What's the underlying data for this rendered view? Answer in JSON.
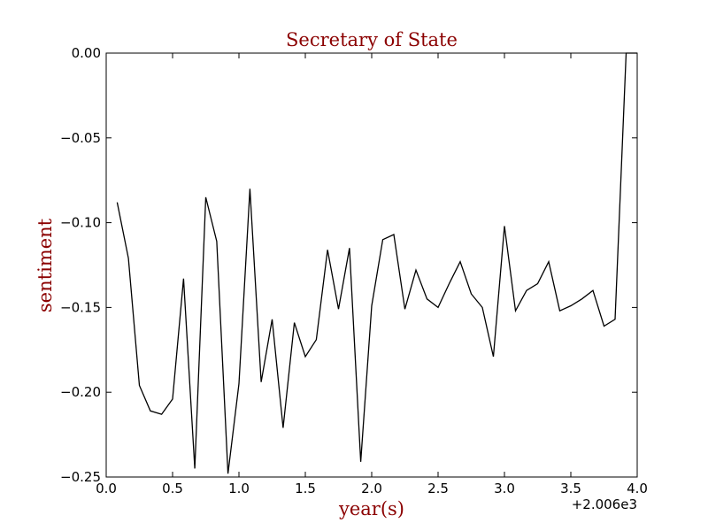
{
  "chart_data": {
    "type": "line",
    "title": "Secretary of State",
    "xlabel": "year(s)",
    "ylabel": "sentiment",
    "x_offset_label": "+2.006e3",
    "xlim": [
      0.0,
      4.0
    ],
    "ylim": [
      -0.25,
      0.0
    ],
    "x_ticks": [
      0.0,
      0.5,
      1.0,
      1.5,
      2.0,
      2.5,
      3.0,
      3.5,
      4.0
    ],
    "x_tick_labels": [
      "0.0",
      "0.5",
      "1.0",
      "1.5",
      "2.0",
      "2.5",
      "3.0",
      "3.5",
      "4.0"
    ],
    "y_ticks": [
      0.0,
      -0.05,
      -0.1,
      -0.15,
      -0.2,
      -0.25
    ],
    "y_tick_labels": [
      "0.00",
      "−0.05",
      "−0.10",
      "−0.15",
      "−0.20",
      "−0.25"
    ],
    "grid": false,
    "colors": {
      "line": "#000000",
      "label_text": "#8b0000",
      "title_text": "#8b0000"
    },
    "series": [
      {
        "x": [
          0.083,
          0.167,
          0.25,
          0.333,
          0.417,
          0.5,
          0.583,
          0.667,
          0.75,
          0.833,
          0.917,
          1.0,
          1.083,
          1.167,
          1.25,
          1.333,
          1.417,
          1.5,
          1.583,
          1.667,
          1.75,
          1.833,
          1.917,
          2.0,
          2.083,
          2.167,
          2.25,
          2.333,
          2.417,
          2.5,
          2.583,
          2.667,
          2.75,
          2.833,
          2.917,
          3.0,
          3.083,
          3.167,
          3.25,
          3.333,
          3.417,
          3.5,
          3.583,
          3.667,
          3.75,
          3.833,
          3.917,
          4.0
        ],
        "y": [
          -0.088,
          -0.121,
          -0.196,
          -0.211,
          -0.213,
          -0.204,
          -0.133,
          -0.245,
          -0.085,
          -0.111,
          -0.248,
          -0.195,
          -0.08,
          -0.194,
          -0.157,
          -0.221,
          -0.159,
          -0.179,
          -0.169,
          -0.116,
          -0.151,
          -0.115,
          -0.241,
          -0.149,
          -0.11,
          -0.107,
          -0.151,
          -0.128,
          -0.145,
          -0.15,
          -0.136,
          -0.123,
          -0.142,
          -0.15,
          -0.179,
          -0.102,
          -0.152,
          -0.14,
          -0.136,
          -0.123,
          -0.152,
          -0.149,
          -0.145,
          -0.14,
          -0.161,
          -0.157,
          0.0,
          0.0
        ]
      }
    ]
  }
}
